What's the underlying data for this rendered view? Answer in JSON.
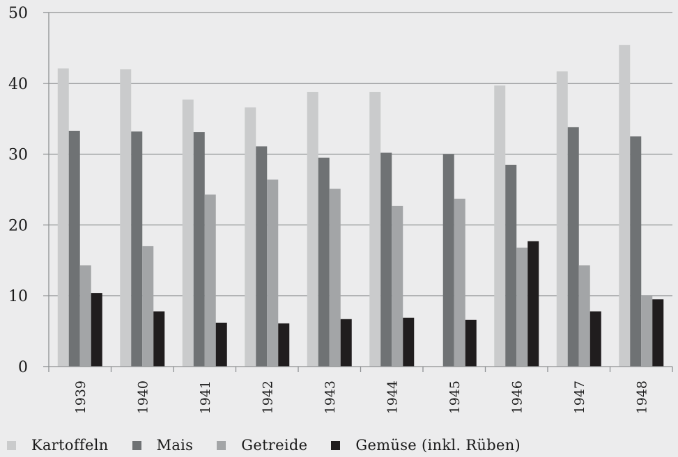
{
  "chart_data": {
    "type": "bar",
    "title": "",
    "xlabel": "",
    "ylabel": "",
    "ylim": [
      0,
      50
    ],
    "yticks": [
      "0",
      "10",
      "20",
      "30",
      "40",
      "50"
    ],
    "grid": true,
    "legend_position": "bottom",
    "categories": [
      "1939",
      "1940",
      "1941",
      "1942",
      "1943",
      "1944",
      "1945",
      "1946",
      "1947",
      "1948"
    ],
    "series": [
      {
        "name": "Kartoffeln",
        "color": "#cacbcc",
        "values": [
          42.1,
          42.0,
          37.7,
          36.6,
          38.8,
          38.8,
          null,
          39.7,
          41.7,
          45.4
        ]
      },
      {
        "name": "Mais",
        "color": "#6f7274",
        "values": [
          33.3,
          33.2,
          33.1,
          31.1,
          29.5,
          30.2,
          30.0,
          28.5,
          33.8,
          32.5
        ]
      },
      {
        "name": "Getreide",
        "color": "#a3a5a7",
        "values": [
          14.3,
          17.0,
          24.3,
          26.4,
          25.1,
          22.7,
          23.7,
          16.8,
          14.3,
          10.1
        ]
      },
      {
        "name": "Gemüse (inkl. Rüben)",
        "color": "#201d1e",
        "values": [
          10.4,
          7.8,
          6.2,
          6.1,
          6.7,
          6.9,
          6.6,
          17.7,
          7.8,
          9.5
        ]
      }
    ]
  }
}
